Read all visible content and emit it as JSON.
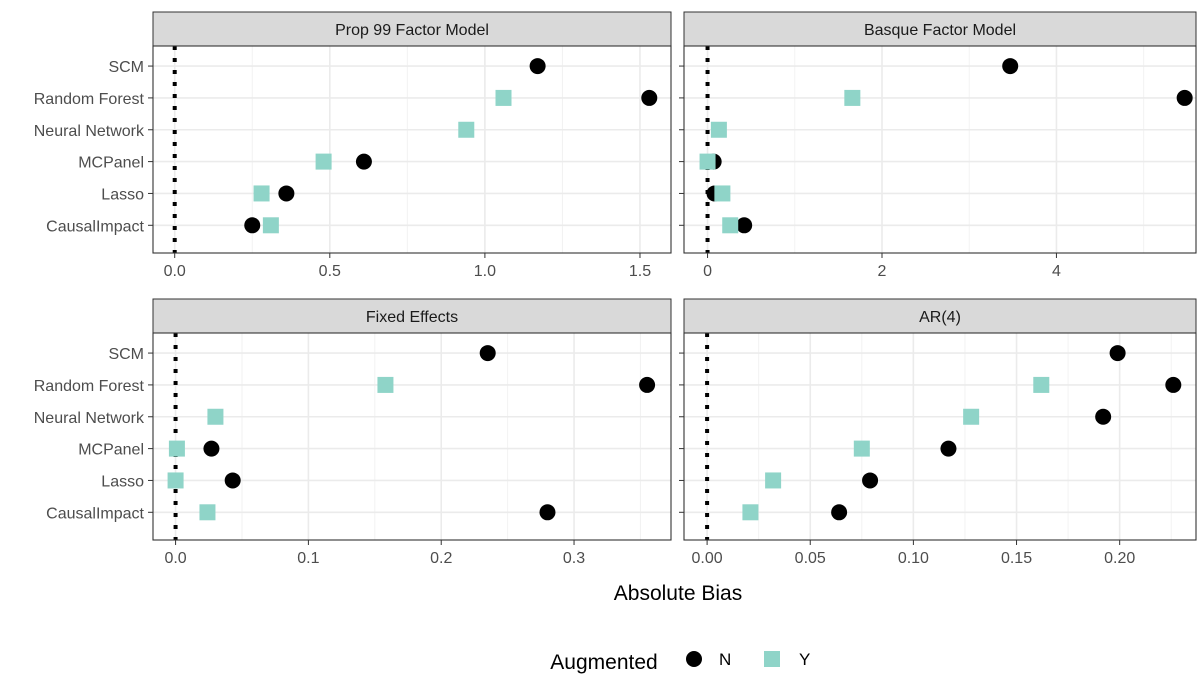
{
  "chart_data": {
    "type": "scatter",
    "x_axis_title": "Absolute Bias",
    "categories": [
      "SCM",
      "Random Forest",
      "Neural Network",
      "MCPanel",
      "Lasso",
      "CausalImpact"
    ],
    "legend": {
      "title": "Augmented",
      "position": "bottom",
      "items": [
        {
          "key": "N",
          "label": "N",
          "shape": "circle",
          "color": "#000000"
        },
        {
          "key": "Y",
          "label": "Y",
          "shape": "square",
          "color": "#8fd4c8"
        }
      ]
    },
    "reference_line": {
      "x": 0,
      "style": "dotted"
    },
    "grid": true,
    "panels": [
      {
        "title": "Prop 99 Factor Model",
        "xlim": [
          -0.07,
          1.6
        ],
        "xticks": [
          0,
          0.5,
          1,
          1.5
        ],
        "xtick_labels": [
          "0.0",
          "0.5",
          "1.0",
          "1.5"
        ],
        "series": [
          {
            "name": "N",
            "values": [
              1.17,
              1.53,
              null,
              0.61,
              0.36,
              0.25
            ]
          },
          {
            "name": "Y",
            "values": [
              null,
              1.06,
              0.94,
              0.48,
              0.28,
              0.31
            ]
          }
        ]
      },
      {
        "title": "Basque Factor Model",
        "xlim": [
          -0.27,
          5.6
        ],
        "xticks": [
          0,
          2,
          4
        ],
        "xtick_labels": [
          "0",
          "2",
          "4"
        ],
        "series": [
          {
            "name": "N",
            "values": [
              3.47,
              5.47,
              null,
              0.07,
              0.08,
              0.42
            ]
          },
          {
            "name": "Y",
            "values": [
              null,
              1.66,
              0.13,
              0.0,
              0.17,
              0.26
            ]
          }
        ]
      },
      {
        "title": "Fixed Effects",
        "xlim": [
          -0.017,
          0.373
        ],
        "xticks": [
          0,
          0.1,
          0.2,
          0.3
        ],
        "xtick_labels": [
          "0.0",
          "0.1",
          "0.2",
          "0.3"
        ],
        "series": [
          {
            "name": "N",
            "values": [
              0.235,
              0.355,
              null,
              0.027,
              0.043,
              0.28
            ]
          },
          {
            "name": "Y",
            "values": [
              null,
              0.158,
              0.03,
              0.001,
              0.0,
              0.024
            ]
          }
        ]
      },
      {
        "title": "AR(4)",
        "xlim": [
          -0.0112,
          0.237
        ],
        "xticks": [
          0,
          0.05,
          0.1,
          0.15,
          0.2
        ],
        "xtick_labels": [
          "0.00",
          "0.05",
          "0.10",
          "0.15",
          "0.20"
        ],
        "series": [
          {
            "name": "N",
            "values": [
              0.199,
              0.226,
              0.192,
              0.117,
              0.079,
              0.064
            ]
          },
          {
            "name": "Y",
            "values": [
              null,
              0.162,
              0.128,
              0.075,
              0.032,
              0.021
            ]
          }
        ]
      }
    ]
  }
}
